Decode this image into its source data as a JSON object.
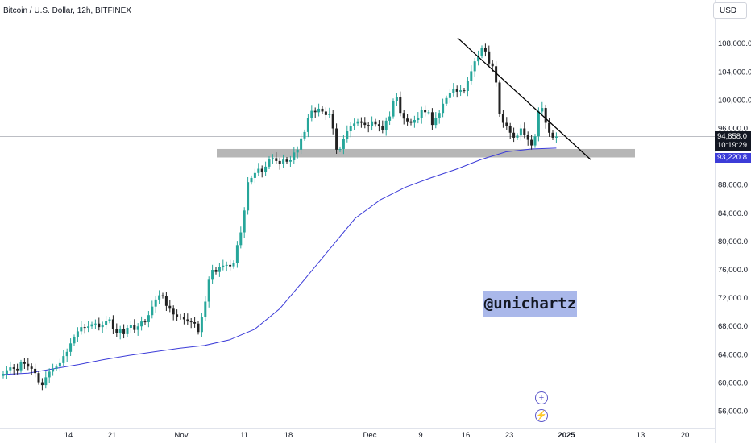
{
  "header": {
    "title": "Bitcoin / U.S. Dollar, 12h, BITFINEX",
    "currency_label": "USD"
  },
  "watermark": {
    "text": "@unichartz"
  },
  "price_axis": {
    "labels": [
      "108,000.0",
      "104,000.0",
      "100,000.0",
      "96,000.0",
      "88,000.0",
      "84,000.0",
      "80,000.0",
      "76,000.0",
      "72,000.0",
      "68,000.0",
      "64,000.0",
      "60,000.0",
      "56,000.0"
    ]
  },
  "time_axis": {
    "labels": [
      "14",
      "21",
      "Nov",
      "11",
      "18",
      "Dec",
      "9",
      "16",
      "23",
      "2025",
      "13",
      "20"
    ]
  },
  "price_tags": {
    "current_price": "94,858.0",
    "countdown": "10:19:29",
    "ma_value": "93,220.8"
  },
  "icons": {
    "add": "plus-circle-icon",
    "alert": "lightning-circle-icon"
  },
  "colors": {
    "candle_up": "#26a69a",
    "candle_down": "#222222",
    "moving_average": "#3c3cd8",
    "support_zone": "#9e9e9e",
    "trendline": "#000000",
    "watermark_bg": "#aab8ea"
  },
  "chart_data": {
    "type": "candlestick",
    "symbol": "Bitcoin / U.S. Dollar",
    "interval": "12h",
    "exchange": "BITFINEX",
    "ylim": [
      54000,
      112000
    ],
    "current_price": 94858.0,
    "ma_value": 93220.8,
    "support_zone": [
      91900,
      93100
    ],
    "trendline": {
      "start": {
        "date": "Dec 15",
        "price": 108800
      },
      "end": {
        "date": "Dec 31",
        "price": 91600
      }
    },
    "ohlc_close": [
      61300,
      61800,
      62200,
      62000,
      61800,
      62900,
      62700,
      62300,
      62000,
      61400,
      60100,
      59700,
      60800,
      61600,
      62000,
      62300,
      62800,
      63800,
      64400,
      65600,
      66500,
      67300,
      67900,
      67800,
      68000,
      68300,
      68400,
      67900,
      68200,
      68800,
      69000,
      67600,
      67000,
      67600,
      66900,
      67800,
      68200,
      67500,
      68000,
      68700,
      68600,
      69600,
      70800,
      71800,
      72400,
      72300,
      70900,
      70500,
      69700,
      69400,
      69300,
      69000,
      68700,
      68600,
      68400,
      67200,
      69300,
      71500,
      74600,
      76000,
      75700,
      76400,
      76600,
      76700,
      76500,
      77000,
      79500,
      81300,
      84400,
      88400,
      89000,
      89700,
      90300,
      89900,
      90600,
      91700,
      91800,
      91400,
      91000,
      91600,
      91300,
      91500,
      92600,
      93000,
      94600,
      95500,
      97500,
      98500,
      98300,
      98800,
      98400,
      97900,
      98100,
      96000,
      93000,
      93100,
      94500,
      95600,
      96400,
      96700,
      97000,
      96800,
      96500,
      96300,
      97000,
      96600,
      96300,
      95800,
      97100,
      97700,
      99900,
      100400,
      98200,
      97400,
      97000,
      96800,
      97200,
      97500,
      98600,
      98300,
      98300,
      96500,
      97500,
      98200,
      99500,
      100300,
      101000,
      101600,
      101200,
      101400,
      101300,
      102700,
      104100,
      105500,
      106300,
      107400,
      106900,
      105200,
      104800,
      102500,
      98000,
      96800,
      96300,
      95400,
      94700,
      95000,
      96000,
      95100,
      94400,
      93600,
      94900,
      98400,
      98900,
      96800,
      95400,
      94700,
      94860
    ],
    "ma_series_sample": [
      61200,
      61400,
      62000,
      62600,
      63300,
      63900,
      64400,
      64900,
      65300,
      66100,
      67600,
      70500,
      74700,
      79000,
      83300,
      85900,
      87700,
      89000,
      90200,
      91600,
      92700,
      93100,
      93220
    ]
  }
}
